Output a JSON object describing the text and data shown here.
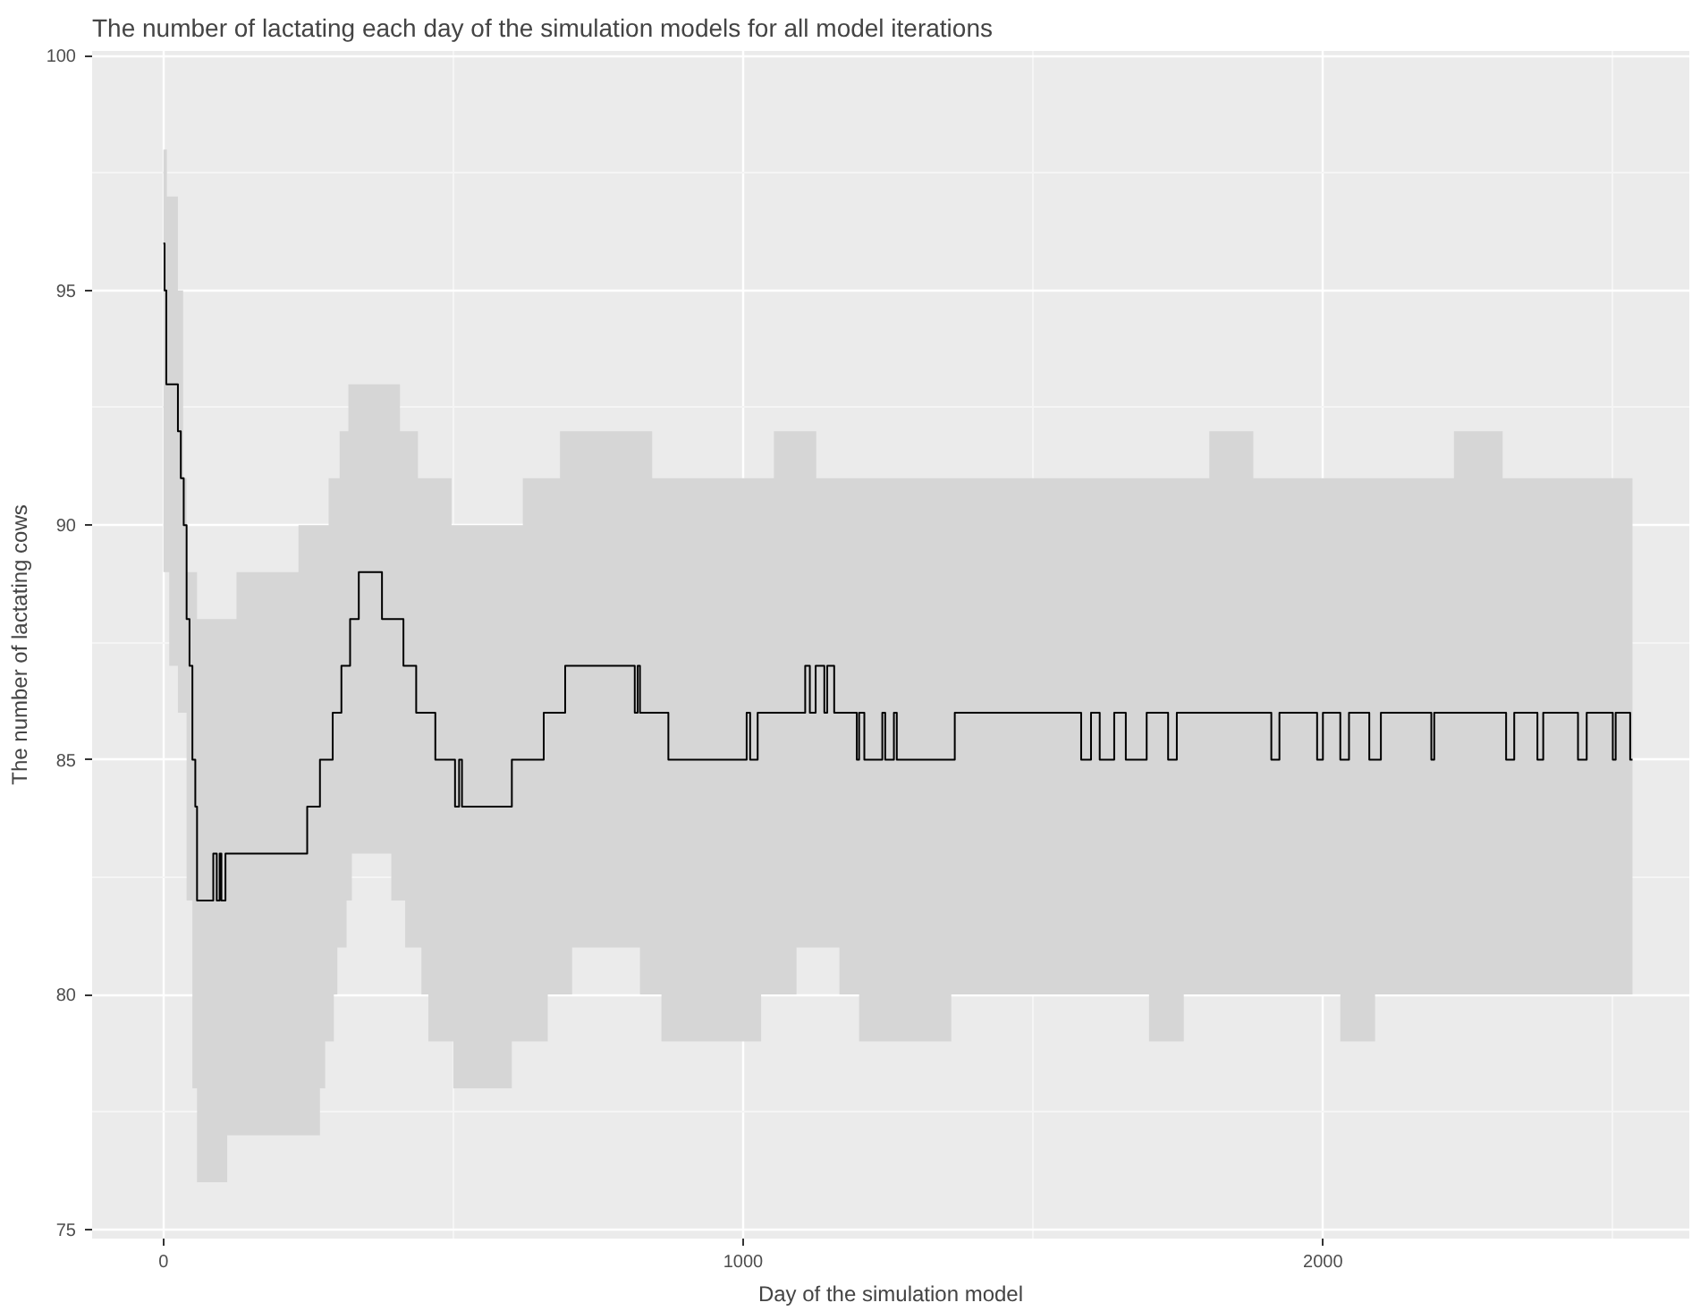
{
  "chart_data": {
    "type": "step",
    "title": "The number of lactating each day of the simulation models for all model iterations",
    "xlabel": "Day of the simulation model",
    "ylabel": "The number of lactating cows",
    "xlim": [
      -123,
      2632
    ],
    "ylim": [
      74.8,
      100.1
    ],
    "xticks": [
      0,
      1000,
      2000
    ],
    "yticks": [
      75,
      80,
      85,
      90,
      95,
      100
    ],
    "grid": true,
    "series": [
      {
        "color": "#000000",
        "x": [
          0,
          2,
          5,
          6,
          10,
          25,
          30,
          34,
          35,
          40,
          45,
          50,
          55,
          58,
          86,
          92,
          97,
          100,
          107,
          110,
          126,
          233,
          248,
          270,
          279,
          285,
          292,
          294,
          300,
          304,
          307,
          316,
          319,
          322,
          325,
          337,
          377,
          393,
          408,
          414,
          417,
          436,
          439,
          445,
          457,
          469,
          497,
          500,
          503,
          510,
          515,
          601,
          620,
          656,
          663,
          684,
          693,
          705,
          813,
          818,
          822,
          843,
          859,
          871,
          1006,
          1012,
          1025,
          1031,
          1053,
          1092,
          1107,
          1115,
          1125,
          1126,
          1140,
          1145,
          1157,
          1166,
          1196,
          1200,
          1209,
          1240,
          1245,
          1260,
          1265,
          1359,
          1365,
          1583,
          1600,
          1615,
          1640,
          1660,
          1696,
          1700,
          1733,
          1748,
          1760,
          1804,
          1880,
          1911,
          1925,
          1990,
          2000,
          2030,
          2045,
          2080,
          2090,
          2100,
          2187,
          2192,
          2226,
          2310,
          2316,
          2330,
          2370,
          2380,
          2440,
          2455,
          2500,
          2505,
          2530,
          2534
        ],
        "values": [
          96,
          95,
          93,
          93,
          93,
          92,
          91,
          91,
          90,
          88,
          87,
          85,
          84,
          82,
          83,
          82,
          83,
          82,
          83,
          83,
          83,
          83,
          84,
          85,
          85,
          85,
          86,
          86,
          86,
          86,
          87,
          87,
          87,
          88,
          88,
          89,
          88,
          88,
          88,
          87,
          87,
          86,
          86,
          86,
          86,
          85,
          85,
          85,
          84,
          85,
          84,
          85,
          85,
          86,
          86,
          86,
          87,
          87,
          86,
          87,
          86,
          86,
          86,
          85,
          86,
          85,
          86,
          86,
          86,
          86,
          87,
          86,
          87,
          87,
          86,
          87,
          86,
          86,
          85,
          86,
          85,
          86,
          85,
          86,
          85,
          85,
          86,
          85,
          86,
          85,
          86,
          85,
          86,
          86,
          85,
          86,
          86,
          86,
          86,
          85,
          86,
          85,
          86,
          85,
          86,
          85,
          85,
          86,
          85,
          86,
          86,
          86,
          85,
          86,
          85,
          86,
          85,
          86,
          85,
          86,
          85,
          85
        ],
        "lower": [
          89,
          89,
          89,
          89,
          87,
          86,
          86,
          86,
          86,
          82,
          82,
          78,
          78,
          76,
          76,
          76,
          76,
          76,
          76,
          77,
          77,
          77,
          77,
          78,
          79,
          79,
          79,
          80,
          81,
          81,
          81,
          82,
          82,
          82,
          83,
          83,
          83,
          82,
          82,
          82,
          81,
          81,
          81,
          80,
          79,
          79,
          79,
          78,
          78,
          78,
          78,
          79,
          79,
          79,
          80,
          80,
          80,
          81,
          81,
          81,
          80,
          80,
          79,
          79,
          79,
          79,
          79,
          80,
          80,
          81,
          81,
          81,
          81,
          81,
          81,
          81,
          81,
          80,
          80,
          79,
          79,
          79,
          79,
          79,
          79,
          80,
          80,
          80,
          80,
          80,
          80,
          80,
          80,
          79,
          79,
          79,
          80,
          80,
          80,
          80,
          80,
          80,
          80,
          79,
          79,
          79,
          80,
          80,
          80,
          80,
          80,
          80,
          80,
          80,
          80,
          80,
          80,
          80,
          80,
          80,
          80,
          80
        ],
        "upper": [
          98,
          98,
          98,
          97,
          97,
          95,
          95,
          91,
          91,
          89,
          89,
          89,
          89,
          88,
          88,
          88,
          88,
          88,
          88,
          88,
          89,
          90,
          90,
          90,
          90,
          91,
          91,
          91,
          91,
          92,
          92,
          92,
          93,
          93,
          93,
          93,
          93,
          93,
          92,
          92,
          92,
          92,
          91,
          91,
          91,
          91,
          90,
          90,
          90,
          90,
          90,
          90,
          91,
          91,
          91,
          92,
          92,
          92,
          92,
          92,
          92,
          91,
          91,
          91,
          91,
          91,
          91,
          91,
          92,
          92,
          92,
          92,
          92,
          91,
          91,
          91,
          91,
          91,
          91,
          91,
          91,
          91,
          91,
          91,
          91,
          91,
          91,
          91,
          91,
          91,
          91,
          91,
          91,
          91,
          91,
          91,
          91,
          92,
          91,
          91,
          91,
          91,
          91,
          91,
          91,
          91,
          91,
          91,
          91,
          91,
          92,
          91,
          91,
          91,
          91,
          91,
          91,
          91,
          91,
          91,
          91,
          91
        ]
      }
    ]
  }
}
